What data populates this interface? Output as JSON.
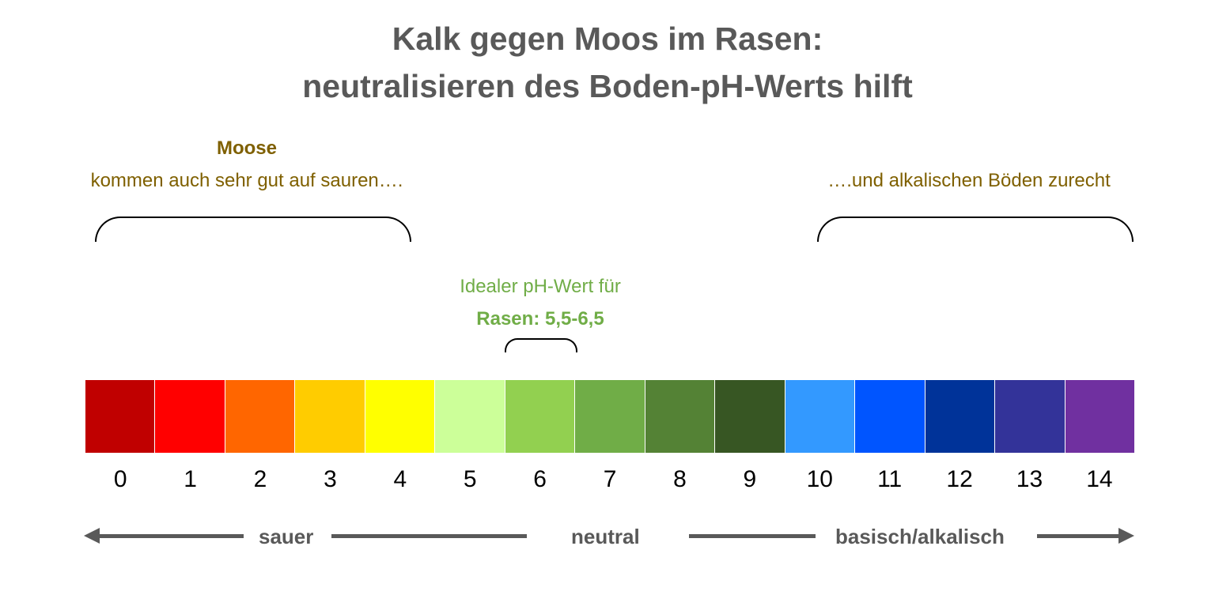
{
  "title": {
    "line1": "Kalk gegen Moos im Rasen:",
    "line2": "neutralisieren des Boden-pH-Werts hilft"
  },
  "moss": {
    "heading": "Moose",
    "left_text": "kommen auch sehr gut auf sauren….",
    "right_text": "….und alkalischen Böden zurecht"
  },
  "ideal": {
    "line1": "Idealer pH-Wert für",
    "line2": "Rasen: 5,5-6,5"
  },
  "scale": {
    "values": [
      "0",
      "1",
      "2",
      "3",
      "4",
      "5",
      "6",
      "7",
      "8",
      "9",
      "10",
      "11",
      "12",
      "13",
      "14"
    ],
    "colors": [
      "#c00000",
      "#ff0000",
      "#ff6600",
      "#ffcc00",
      "#ffff00",
      "#ccff99",
      "#92d050",
      "#70ad47",
      "#548235",
      "#375623",
      "#3399ff",
      "#0055ff",
      "#003399",
      "#333399",
      "#7030a0"
    ]
  },
  "axis": {
    "acid": "sauer",
    "neutral": "neutral",
    "basic": "basisch/alkalisch"
  }
}
